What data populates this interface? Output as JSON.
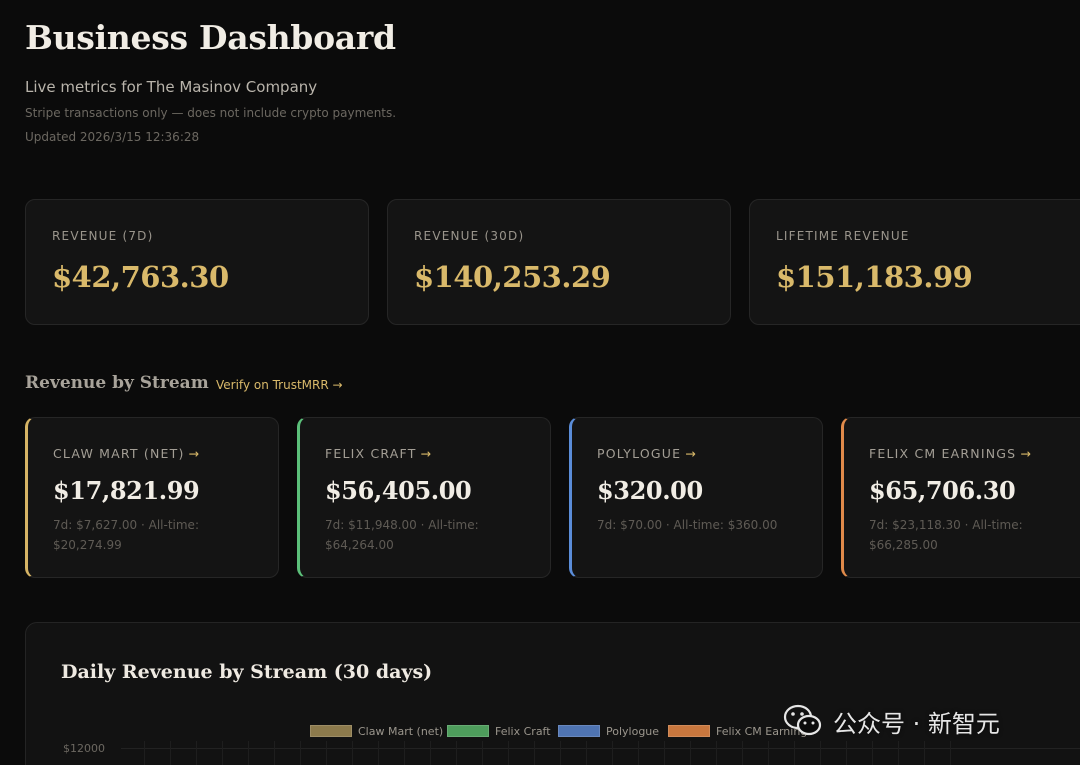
{
  "header": {
    "title": "Business Dashboard",
    "subtitle": "Live metrics for The Masinov Company",
    "note": "Stripe transactions only — does not include crypto payments.",
    "updated": "Updated 2026/3/15 12:36:28"
  },
  "kpis": [
    {
      "label": "REVENUE (7D)",
      "value": "$42,763.30"
    },
    {
      "label": "REVENUE (30D)",
      "value": "$140,253.29"
    },
    {
      "label": "LIFETIME REVENUE",
      "value": "$151,183.99"
    }
  ],
  "streams_section": {
    "title": "Revenue by Stream",
    "verify_link": "Verify on TrustMRR →"
  },
  "streams": [
    {
      "label": "CLAW MART (NET)",
      "arrow": "→",
      "value": "$17,821.99",
      "meta": "7d: $7,627.00 · All-time: $20,274.99",
      "accent": "#d6b465"
    },
    {
      "label": "FELIX CRAFT",
      "arrow": "→",
      "value": "$56,405.00",
      "meta": "7d: $11,948.00 · All-time: $64,264.00",
      "accent": "#5cc07a"
    },
    {
      "label": "POLYLOGUE",
      "arrow": "→",
      "value": "$320.00",
      "meta": "7d: $70.00 · All-time: $360.00",
      "accent": "#5b8dd9"
    },
    {
      "label": "FELIX CM EARNINGS",
      "arrow": "→",
      "value": "$65,706.30",
      "meta": "7d: $23,118.30 · All-time: $66,285.00",
      "accent": "#e08a4a"
    }
  ],
  "chart": {
    "title": "Daily Revenue by Stream (30 days)",
    "legend": [
      {
        "name": "Claw Mart (net)",
        "color": "#8c7a4c"
      },
      {
        "name": "Felix Craft",
        "color": "#4e9d5c"
      },
      {
        "name": "Polylogue",
        "color": "#4f74b2"
      },
      {
        "name": "Felix CM Earnings",
        "color": "#c8773e"
      }
    ],
    "y_tick_top": "$12000"
  },
  "watermark": {
    "text": "公众号 · 新智元"
  }
}
